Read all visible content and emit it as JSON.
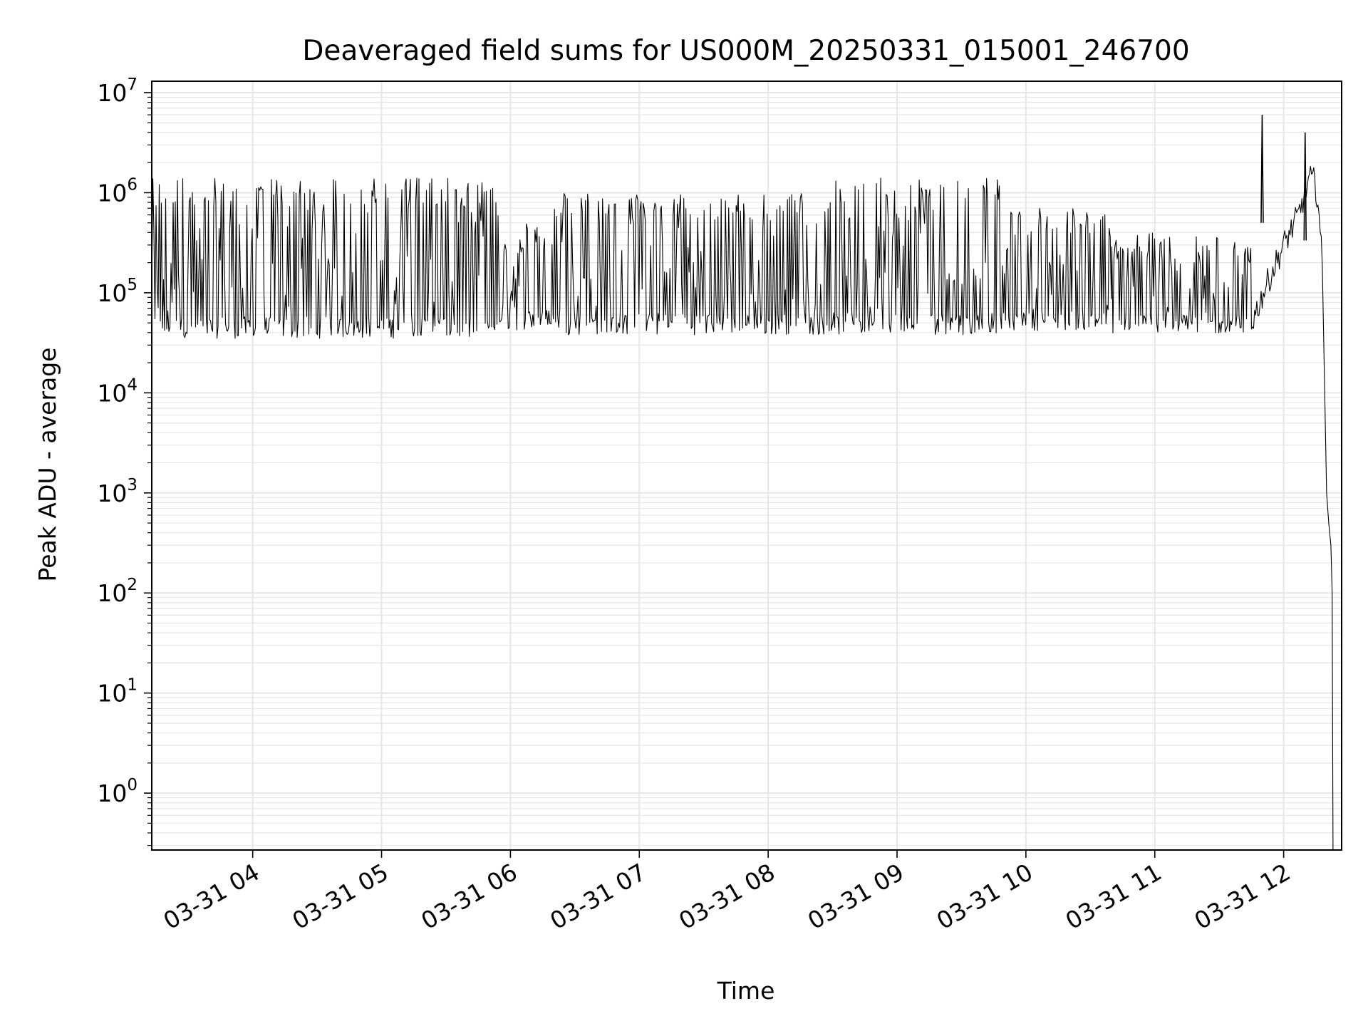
{
  "chart_data": {
    "type": "line",
    "title": "Deaveraged field sums for US000M_20250331_015001_246700",
    "xlabel": "Time",
    "ylabel": "Peak ADU - average",
    "x_scale": "time",
    "y_scale": "log",
    "xlim": [
      "2025-03-31 03:13",
      "2025-03-31 12:27"
    ],
    "ylim": [
      0.27,
      13000000
    ],
    "grid": {
      "major": true,
      "minor_y": true,
      "color": "#e6e6e6"
    },
    "line_color": "#000000",
    "x_ticks": [
      {
        "value": "2025-03-31 04:00",
        "label": "03-31 04"
      },
      {
        "value": "2025-03-31 05:00",
        "label": "03-31 05"
      },
      {
        "value": "2025-03-31 06:00",
        "label": "03-31 06"
      },
      {
        "value": "2025-03-31 07:00",
        "label": "03-31 07"
      },
      {
        "value": "2025-03-31 08:00",
        "label": "03-31 08"
      },
      {
        "value": "2025-03-31 09:00",
        "label": "03-31 09"
      },
      {
        "value": "2025-03-31 10:00",
        "label": "03-31 10"
      },
      {
        "value": "2025-03-31 11:00",
        "label": "03-31 11"
      },
      {
        "value": "2025-03-31 12:00",
        "label": "03-31 12"
      }
    ],
    "y_ticks": [
      {
        "value": 1,
        "mantissa": "10",
        "exp": "0"
      },
      {
        "value": 10,
        "mantissa": "10",
        "exp": "1"
      },
      {
        "value": 100,
        "mantissa": "10",
        "exp": "2"
      },
      {
        "value": 1000,
        "mantissa": "10",
        "exp": "3"
      },
      {
        "value": 10000,
        "mantissa": "10",
        "exp": "4"
      },
      {
        "value": 100000,
        "mantissa": "10",
        "exp": "5"
      },
      {
        "value": 1000000,
        "mantissa": "10",
        "exp": "6"
      },
      {
        "value": 10000000,
        "mantissa": "10",
        "exp": "7"
      }
    ],
    "series": [
      {
        "style": "noisy-envelope",
        "segments": [
          {
            "start": "2025-03-31 03:13",
            "end": "2025-03-31 05:55",
            "low": 35000,
            "high": 1400000
          },
          {
            "start": "2025-03-31 05:55",
            "end": "2025-03-31 06:20",
            "low": 42000,
            "high": 500000
          },
          {
            "start": "2025-03-31 06:20",
            "end": "2025-03-31 08:30",
            "low": 38000,
            "high": 1000000
          },
          {
            "start": "2025-03-31 08:30",
            "end": "2025-03-31 09:50",
            "low": 38000,
            "high": 1400000
          },
          {
            "start": "2025-03-31 09:50",
            "end": "2025-03-31 10:40",
            "low": 42000,
            "high": 700000
          },
          {
            "start": "2025-03-31 10:40",
            "end": "2025-03-31 11:45",
            "low": 38000,
            "high": 400000
          }
        ],
        "trend": [
          {
            "x": "2025-03-31 11:45",
            "y": 50000
          },
          {
            "x": "2025-03-31 11:52",
            "y": 120000
          },
          {
            "x": "2025-03-31 12:00",
            "y": 300000
          },
          {
            "x": "2025-03-31 12:07",
            "y": 600000
          },
          {
            "x": "2025-03-31 12:10",
            "y": 1000000
          },
          {
            "x": "2025-03-31 12:12",
            "y": 1400000
          },
          {
            "x": "2025-03-31 12:14",
            "y": 1300000
          },
          {
            "x": "2025-03-31 12:16",
            "y": 900000
          },
          {
            "x": "2025-03-31 12:18",
            "y": 180000
          },
          {
            "x": "2025-03-31 12:20",
            "y": 1000
          },
          {
            "x": "2025-03-31 12:21",
            "y": 500
          },
          {
            "x": "2025-03-31 12:22",
            "y": 300
          },
          {
            "x": "2025-03-31 12:22.6",
            "y": 100
          },
          {
            "x": "2025-03-31 12:23",
            "y": 0.27
          }
        ],
        "spikes": [
          {
            "x": "2025-03-31 11:50",
            "y": 6000000
          },
          {
            "x": "2025-03-31 12:10",
            "y": 4000000
          }
        ]
      }
    ]
  }
}
